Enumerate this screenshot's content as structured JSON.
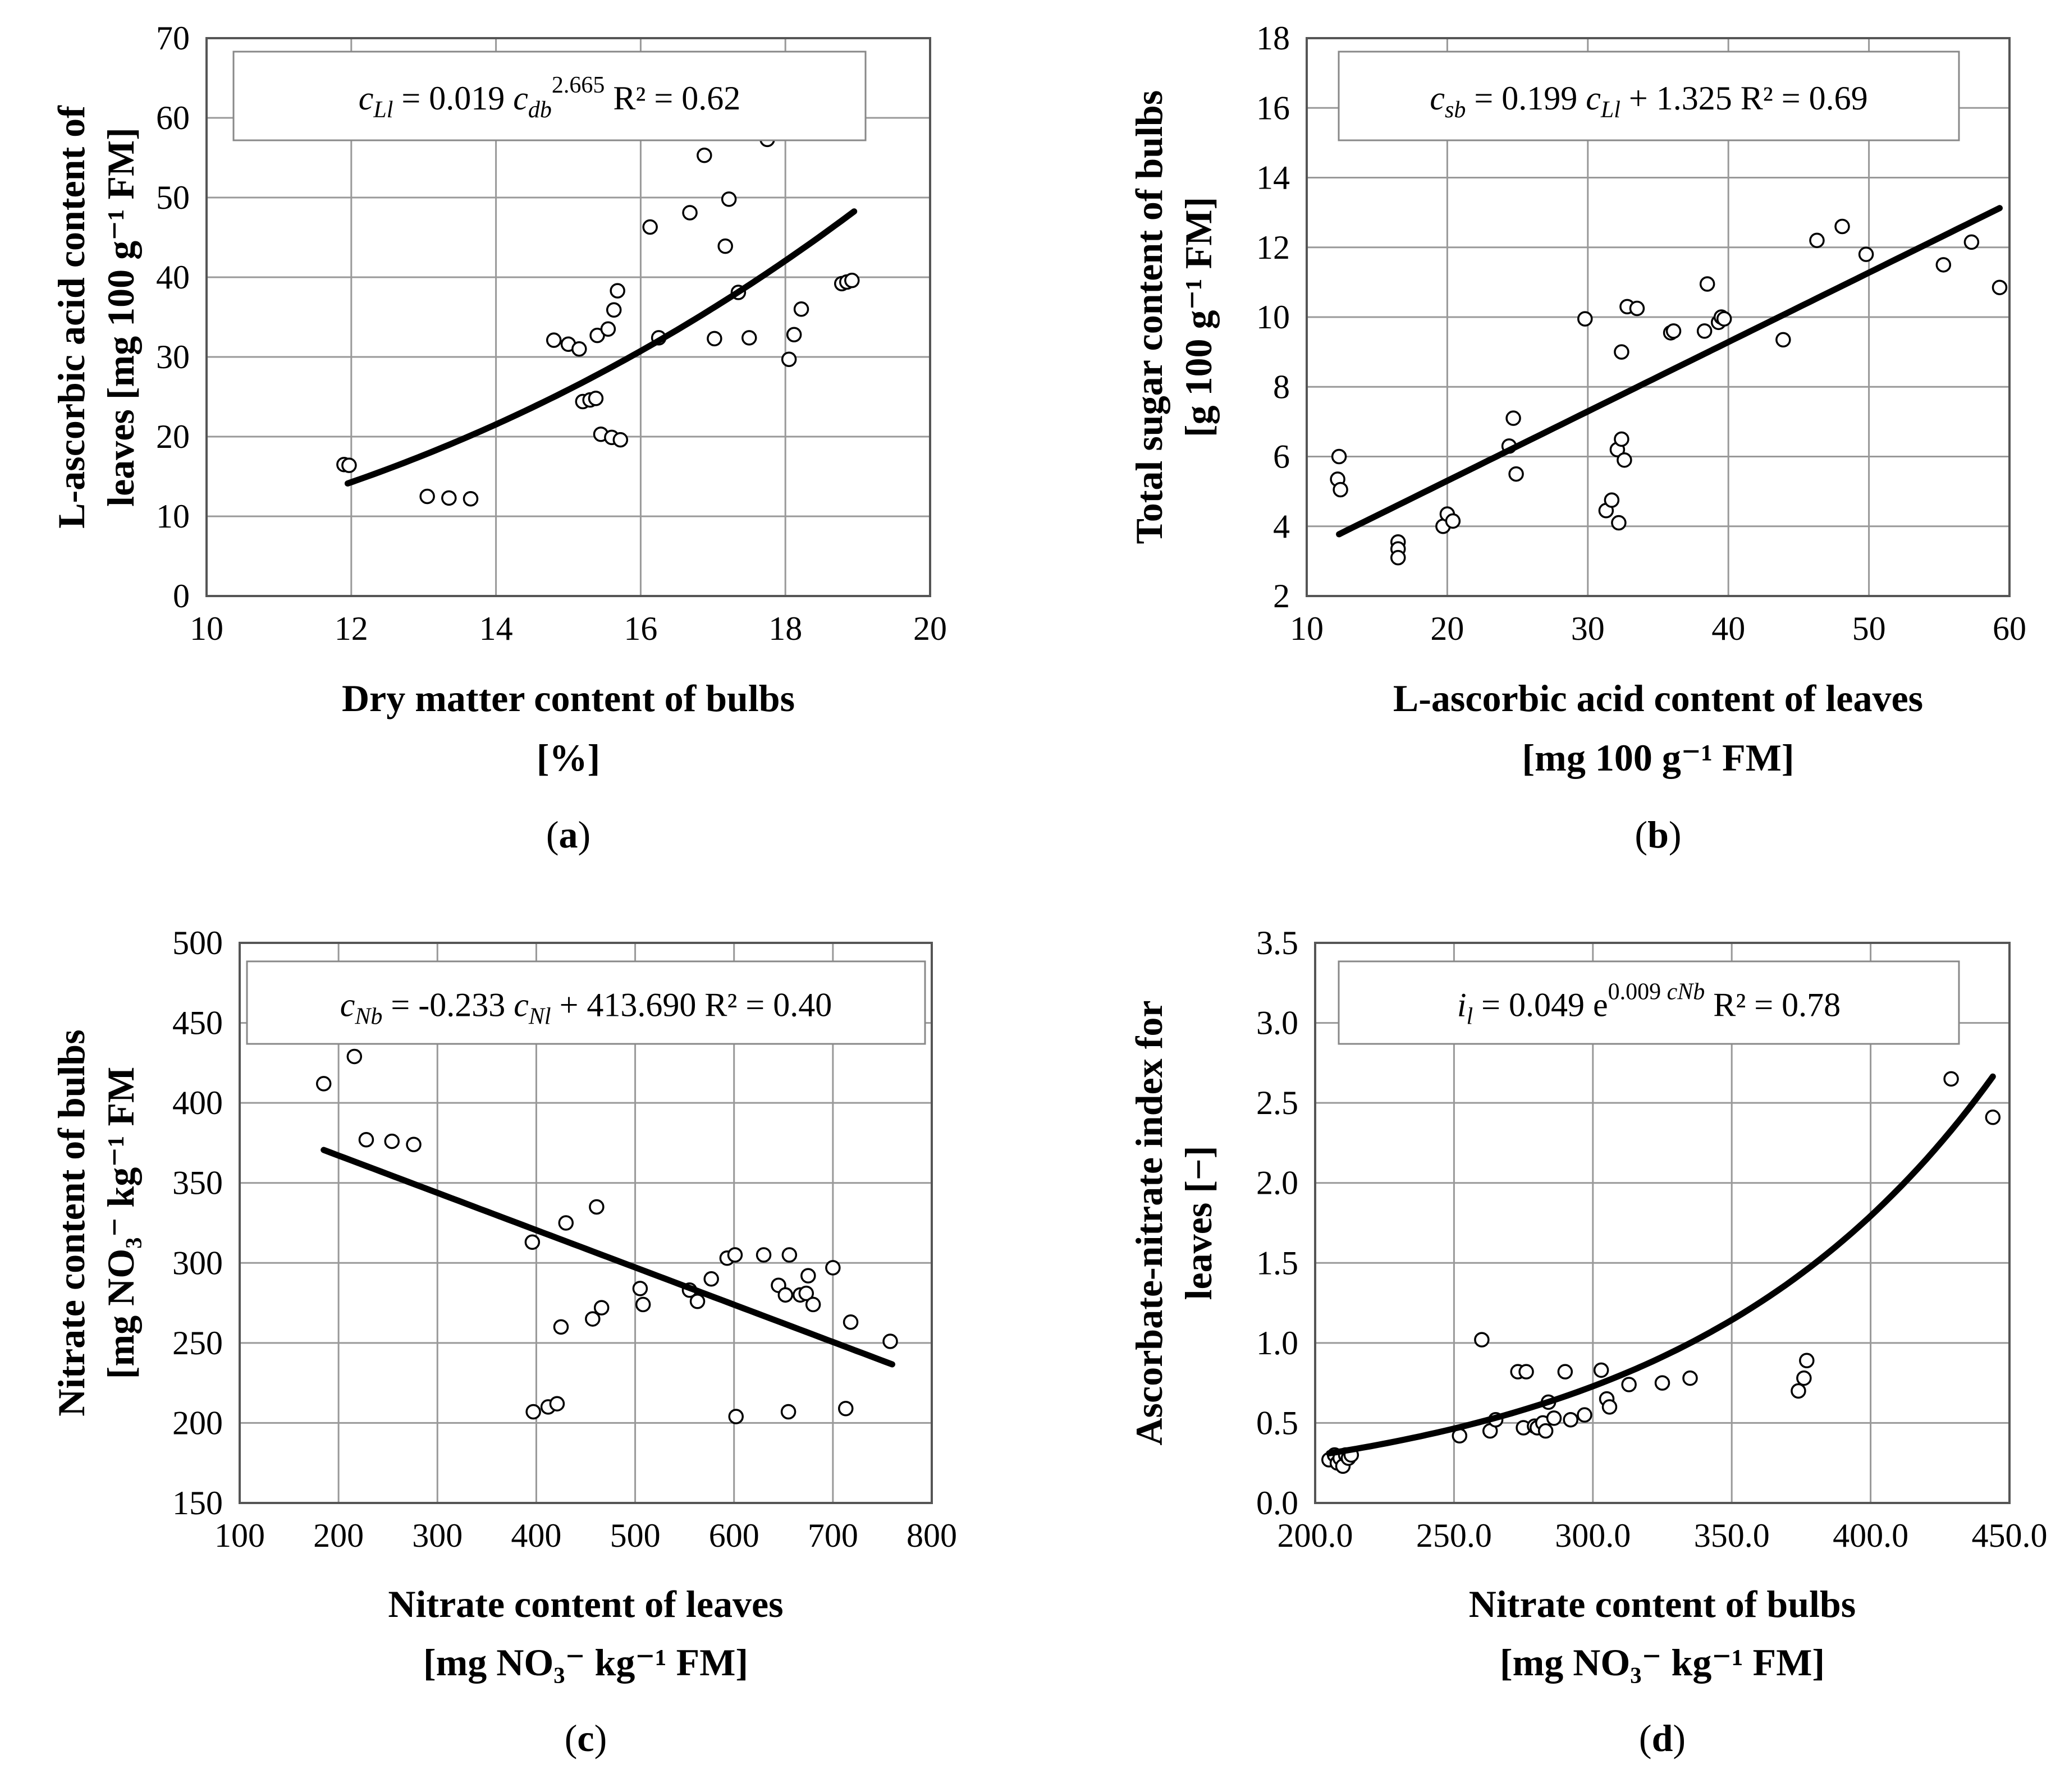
{
  "chart_data": [
    {
      "id": "a",
      "type": "scatter",
      "panel_label": "a",
      "xlabel": [
        "Dry matter content of bulbs",
        "[%]"
      ],
      "ylabel": [
        "L-ascorbic acid  content of",
        "leaves [mg 100 g⁻¹ FM]"
      ],
      "xlim": [
        10,
        20
      ],
      "ylim": [
        0,
        70
      ],
      "xticks": [
        10,
        12,
        14,
        16,
        18,
        20
      ],
      "yticks": [
        0,
        10,
        20,
        30,
        40,
        50,
        60,
        70
      ],
      "equation": {
        "var": "c",
        "var_sub": "Ll",
        "rhs1": " = 0.019 ",
        "x_var": "c",
        "x_sub": "db",
        "sup": "2.665",
        "r2": "R² = 0.62"
      },
      "fit": {
        "model": "power",
        "a": 0.019,
        "b": 2.665,
        "xrange": [
          11.95,
          18.95
        ]
      },
      "points": [
        [
          11.9,
          16.5
        ],
        [
          11.97,
          16.4
        ],
        [
          13.05,
          12.5
        ],
        [
          13.35,
          12.3
        ],
        [
          13.65,
          12.2
        ],
        [
          14.8,
          32.1
        ],
        [
          15.0,
          31.6
        ],
        [
          15.15,
          31.0
        ],
        [
          15.2,
          24.4
        ],
        [
          15.3,
          24.6
        ],
        [
          15.38,
          24.8
        ],
        [
          15.4,
          32.7
        ],
        [
          15.45,
          20.3
        ],
        [
          15.55,
          33.5
        ],
        [
          15.6,
          19.9
        ],
        [
          15.63,
          35.9
        ],
        [
          15.68,
          38.3
        ],
        [
          15.72,
          19.6
        ],
        [
          16.13,
          46.3
        ],
        [
          16.25,
          32.4
        ],
        [
          16.68,
          48.1
        ],
        [
          16.88,
          55.3
        ],
        [
          17.02,
          32.3
        ],
        [
          17.17,
          43.9
        ],
        [
          17.22,
          49.8
        ],
        [
          17.35,
          38.1
        ],
        [
          17.5,
          32.4
        ],
        [
          17.75,
          57.3
        ],
        [
          18.05,
          29.7
        ],
        [
          18.12,
          32.8
        ],
        [
          18.22,
          36.0
        ],
        [
          18.78,
          39.2
        ],
        [
          18.85,
          39.4
        ],
        [
          18.92,
          39.6
        ]
      ]
    },
    {
      "id": "b",
      "type": "scatter",
      "panel_label": "b",
      "xlabel": [
        "L-ascorbic acid content of leaves",
        "[mg 100 g⁻¹ FM]"
      ],
      "ylabel": [
        "Total sugar content of bulbs",
        "[g 100 g⁻¹ FM]"
      ],
      "xlim": [
        10,
        60
      ],
      "ylim": [
        2,
        18
      ],
      "xticks": [
        10,
        20,
        30,
        40,
        50,
        60
      ],
      "yticks": [
        2,
        4,
        6,
        8,
        10,
        12,
        14,
        16,
        18
      ],
      "equation": {
        "var": "c",
        "var_sub": "sb",
        "rhs1": " = 0.199 ",
        "x_var": "c",
        "x_sub": "Ll",
        "rhs2": " + 1.325",
        "r2": "R² = 0.69"
      },
      "fit": {
        "model": "linear",
        "a": 0.199,
        "b": 1.325,
        "xrange": [
          12.3,
          59.3
        ]
      },
      "points": [
        [
          12.3,
          6.0
        ],
        [
          12.2,
          5.35
        ],
        [
          12.4,
          5.05
        ],
        [
          16.5,
          3.55
        ],
        [
          16.5,
          3.35
        ],
        [
          16.5,
          3.1
        ],
        [
          19.7,
          4.0
        ],
        [
          20.0,
          4.35
        ],
        [
          20.4,
          4.15
        ],
        [
          24.4,
          6.3
        ],
        [
          24.7,
          7.1
        ],
        [
          24.9,
          5.5
        ],
        [
          29.8,
          9.95
        ],
        [
          31.3,
          4.45
        ],
        [
          31.7,
          4.75
        ],
        [
          32.1,
          6.2
        ],
        [
          32.2,
          4.1
        ],
        [
          32.4,
          9.0
        ],
        [
          32.4,
          6.5
        ],
        [
          32.6,
          5.9
        ],
        [
          32.8,
          10.3
        ],
        [
          33.5,
          10.25
        ],
        [
          35.9,
          9.55
        ],
        [
          36.1,
          9.6
        ],
        [
          38.3,
          9.6
        ],
        [
          38.5,
          10.95
        ],
        [
          39.3,
          9.85
        ],
        [
          39.5,
          10.0
        ],
        [
          39.7,
          9.95
        ],
        [
          43.9,
          9.35
        ],
        [
          46.3,
          12.2
        ],
        [
          48.1,
          12.6
        ],
        [
          49.8,
          11.8
        ],
        [
          55.3,
          11.5
        ],
        [
          57.3,
          12.15
        ],
        [
          59.3,
          10.85
        ]
      ]
    },
    {
      "id": "c",
      "type": "scatter",
      "panel_label": "c",
      "xlabel": [
        "Nitrate content of leaves",
        "[mg NO₃⁻ kg⁻¹ FM]"
      ],
      "ylabel": [
        "Nitrate content of bulbs",
        "[mg NO₃⁻ kg⁻¹ FM"
      ],
      "xlim": [
        100,
        800
      ],
      "ylim": [
        150,
        500
      ],
      "xticks": [
        100,
        200,
        300,
        400,
        500,
        600,
        700,
        800
      ],
      "yticks": [
        150,
        200,
        250,
        300,
        350,
        400,
        450,
        500
      ],
      "equation": {
        "var": "c",
        "var_sub": "Nb",
        "rhs1": " = -0.233 ",
        "x_var": "c",
        "x_sub": "Nl",
        "rhs2": " + 413.690",
        "r2": "R² = 0.40"
      },
      "fit": {
        "model": "linear",
        "a": -0.233,
        "b": 413.69,
        "xrange": [
          185,
          760
        ]
      },
      "points": [
        [
          185,
          412
        ],
        [
          216,
          429
        ],
        [
          228,
          377
        ],
        [
          254,
          376
        ],
        [
          276,
          374
        ],
        [
          396,
          313
        ],
        [
          397,
          207
        ],
        [
          412,
          210
        ],
        [
          421,
          212
        ],
        [
          425,
          260
        ],
        [
          430,
          325
        ],
        [
          457,
          265
        ],
        [
          461,
          335
        ],
        [
          466,
          272
        ],
        [
          505,
          284
        ],
        [
          508,
          274
        ],
        [
          555,
          283
        ],
        [
          563,
          276
        ],
        [
          577,
          290
        ],
        [
          593,
          303
        ],
        [
          601,
          305
        ],
        [
          602,
          204
        ],
        [
          630,
          305
        ],
        [
          645,
          286
        ],
        [
          652,
          280
        ],
        [
          655,
          207
        ],
        [
          656,
          305
        ],
        [
          667,
          280
        ],
        [
          673,
          281
        ],
        [
          675,
          292
        ],
        [
          680,
          274
        ],
        [
          700,
          297
        ],
        [
          713,
          209
        ],
        [
          718,
          263
        ],
        [
          758,
          251
        ]
      ]
    },
    {
      "id": "d",
      "type": "scatter",
      "panel_label": "d",
      "xlabel": [
        "Nitrate content of bulbs",
        "[mg NO₃⁻ kg⁻¹ FM]"
      ],
      "ylabel": [
        "Ascorbate-nitrate index for",
        "leaves [−]"
      ],
      "xlim": [
        200,
        450
      ],
      "ylim": [
        0.0,
        3.5
      ],
      "xticks": [
        200,
        250,
        300,
        350,
        400,
        450
      ],
      "yticks": [
        0.0,
        0.5,
        1.0,
        1.5,
        2.0,
        2.5,
        3.0,
        3.5
      ],
      "equation": {
        "var": "i",
        "var_sub": "l",
        "rhs1": " = 0.049 e",
        "sup": "0.009 ",
        "sup_italic": "cNb",
        "r2": "R² = 0.78"
      },
      "fit": {
        "model": "exponential",
        "a": 0.049,
        "b": 0.009,
        "xrange": [
          205,
          444
        ]
      },
      "points": [
        [
          205,
          0.27
        ],
        [
          207,
          0.3
        ],
        [
          208,
          0.25
        ],
        [
          209,
          0.28
        ],
        [
          210,
          0.23
        ],
        [
          211,
          0.3
        ],
        [
          212,
          0.28
        ],
        [
          213,
          0.3
        ],
        [
          252,
          0.42
        ],
        [
          260,
          1.02
        ],
        [
          263,
          0.45
        ],
        [
          265,
          0.52
        ],
        [
          273,
          0.82
        ],
        [
          275,
          0.47
        ],
        [
          276,
          0.82
        ],
        [
          279,
          0.48
        ],
        [
          280,
          0.47
        ],
        [
          282,
          0.5
        ],
        [
          283,
          0.45
        ],
        [
          284,
          0.63
        ],
        [
          286,
          0.53
        ],
        [
          290,
          0.82
        ],
        [
          292,
          0.52
        ],
        [
          297,
          0.55
        ],
        [
          303,
          0.83
        ],
        [
          305,
          0.65
        ],
        [
          306,
          0.6
        ],
        [
          313,
          0.74
        ],
        [
          325,
          0.75
        ],
        [
          335,
          0.78
        ],
        [
          374,
          0.7
        ],
        [
          376,
          0.78
        ],
        [
          377,
          0.89
        ],
        [
          429,
          2.65
        ],
        [
          444,
          2.41
        ]
      ]
    }
  ]
}
